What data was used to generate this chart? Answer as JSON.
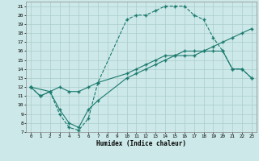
{
  "xlabel": "Humidex (Indice chaleur)",
  "line1_x": [
    0,
    1,
    2,
    3,
    4,
    5,
    6,
    7,
    10,
    11,
    12,
    13,
    14,
    15,
    16,
    17,
    18,
    19,
    20,
    21,
    22,
    23
  ],
  "line1_y": [
    12,
    11,
    11.5,
    9,
    7.5,
    7.2,
    8.5,
    12.5,
    19.5,
    20,
    20,
    20.5,
    21,
    21,
    21,
    20,
    19.5,
    17.5,
    16,
    14,
    14,
    13
  ],
  "line2_x": [
    0,
    2,
    3,
    4,
    5,
    6,
    7,
    10,
    11,
    12,
    13,
    14,
    15,
    16,
    17,
    18,
    19,
    20,
    21,
    22,
    23
  ],
  "line2_y": [
    12,
    11.5,
    12,
    11.5,
    11.5,
    12,
    12.5,
    13.5,
    14,
    14.5,
    15,
    15.5,
    15.5,
    16,
    16,
    16,
    16.5,
    17,
    17.5,
    18,
    18.5
  ],
  "line3_x": [
    0,
    1,
    2,
    3,
    4,
    5,
    6,
    7,
    10,
    11,
    12,
    13,
    14,
    15,
    16,
    17,
    18,
    19,
    20,
    21,
    22,
    23
  ],
  "line3_y": [
    12,
    11,
    11.5,
    9.5,
    8,
    7.5,
    9.5,
    10.5,
    13,
    13.5,
    14,
    14.5,
    15,
    15.5,
    15.5,
    15.5,
    16,
    16,
    16,
    14,
    14,
    13
  ],
  "line_color": "#1a7a6e",
  "bg_color": "#cde8e8",
  "grid_color": "#aacccc",
  "ylim": [
    7,
    21.5
  ],
  "xlim": [
    -0.5,
    23.5
  ],
  "yticks": [
    7,
    8,
    9,
    10,
    11,
    12,
    13,
    14,
    15,
    16,
    17,
    18,
    19,
    20,
    21
  ],
  "xticks": [
    0,
    1,
    2,
    3,
    4,
    5,
    6,
    7,
    8,
    9,
    10,
    11,
    12,
    13,
    14,
    15,
    16,
    17,
    18,
    19,
    20,
    21,
    22,
    23
  ]
}
